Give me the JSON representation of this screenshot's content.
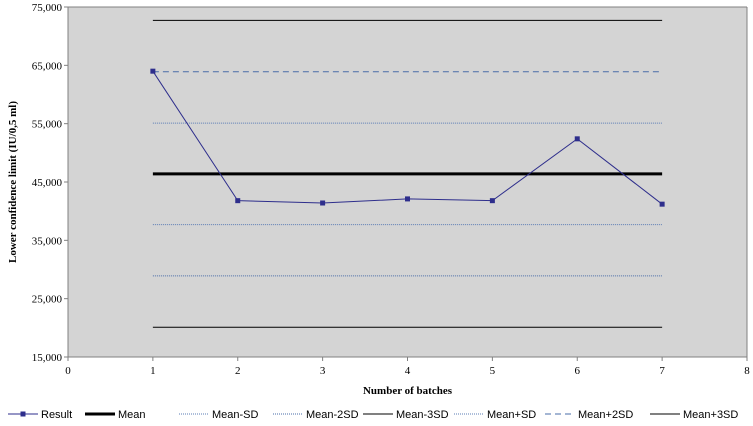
{
  "chart_data": {
    "type": "line",
    "xlabel": "Number of batches",
    "ylabel": "Lower confidence limit (IU/0,5 ml)",
    "xlim": [
      0,
      8
    ],
    "ylim": [
      15000,
      75000
    ],
    "xticks": [
      "0",
      "1",
      "2",
      "3",
      "4",
      "5",
      "6",
      "7",
      "8"
    ],
    "yticks": [
      "15,000",
      "25,000",
      "35,000",
      "45,000",
      "55,000",
      "65,000",
      "75,000"
    ],
    "grid": false,
    "legend_position": "bottom",
    "plot_background": "#d4d4d4",
    "series": [
      {
        "name": "Result",
        "x": [
          1,
          2,
          3,
          4,
          5,
          6,
          7
        ],
        "values": [
          64000,
          41800,
          41400,
          42100,
          41800,
          52400,
          41200
        ],
        "color": "#2e2e8c",
        "marker": "square"
      }
    ],
    "reference_lines": [
      {
        "name": "Mean",
        "value": 46400,
        "color": "#000000",
        "style": "solid-thick",
        "x_range": [
          1,
          7
        ]
      },
      {
        "name": "Mean-SD",
        "value": 37700,
        "color": "#5b7db5",
        "style": "dotted",
        "x_range": [
          1,
          7
        ]
      },
      {
        "name": "Mean-2SD",
        "value": 28900,
        "color": "#4a6ca8",
        "style": "dotted",
        "x_range": [
          1,
          7
        ]
      },
      {
        "name": "Mean-3SD",
        "value": 20100,
        "color": "#000000",
        "style": "solid",
        "x_range": [
          1,
          7
        ]
      },
      {
        "name": "Mean+SD",
        "value": 55100,
        "color": "#5b7db5",
        "style": "dotted",
        "x_range": [
          1,
          7
        ]
      },
      {
        "name": "Mean+2SD",
        "value": 63900,
        "color": "#4a6ca8",
        "style": "dashed",
        "x_range": [
          1,
          7
        ]
      },
      {
        "name": "Mean+3SD",
        "value": 72700,
        "color": "#000000",
        "style": "solid",
        "x_range": [
          1,
          7
        ]
      }
    ]
  }
}
